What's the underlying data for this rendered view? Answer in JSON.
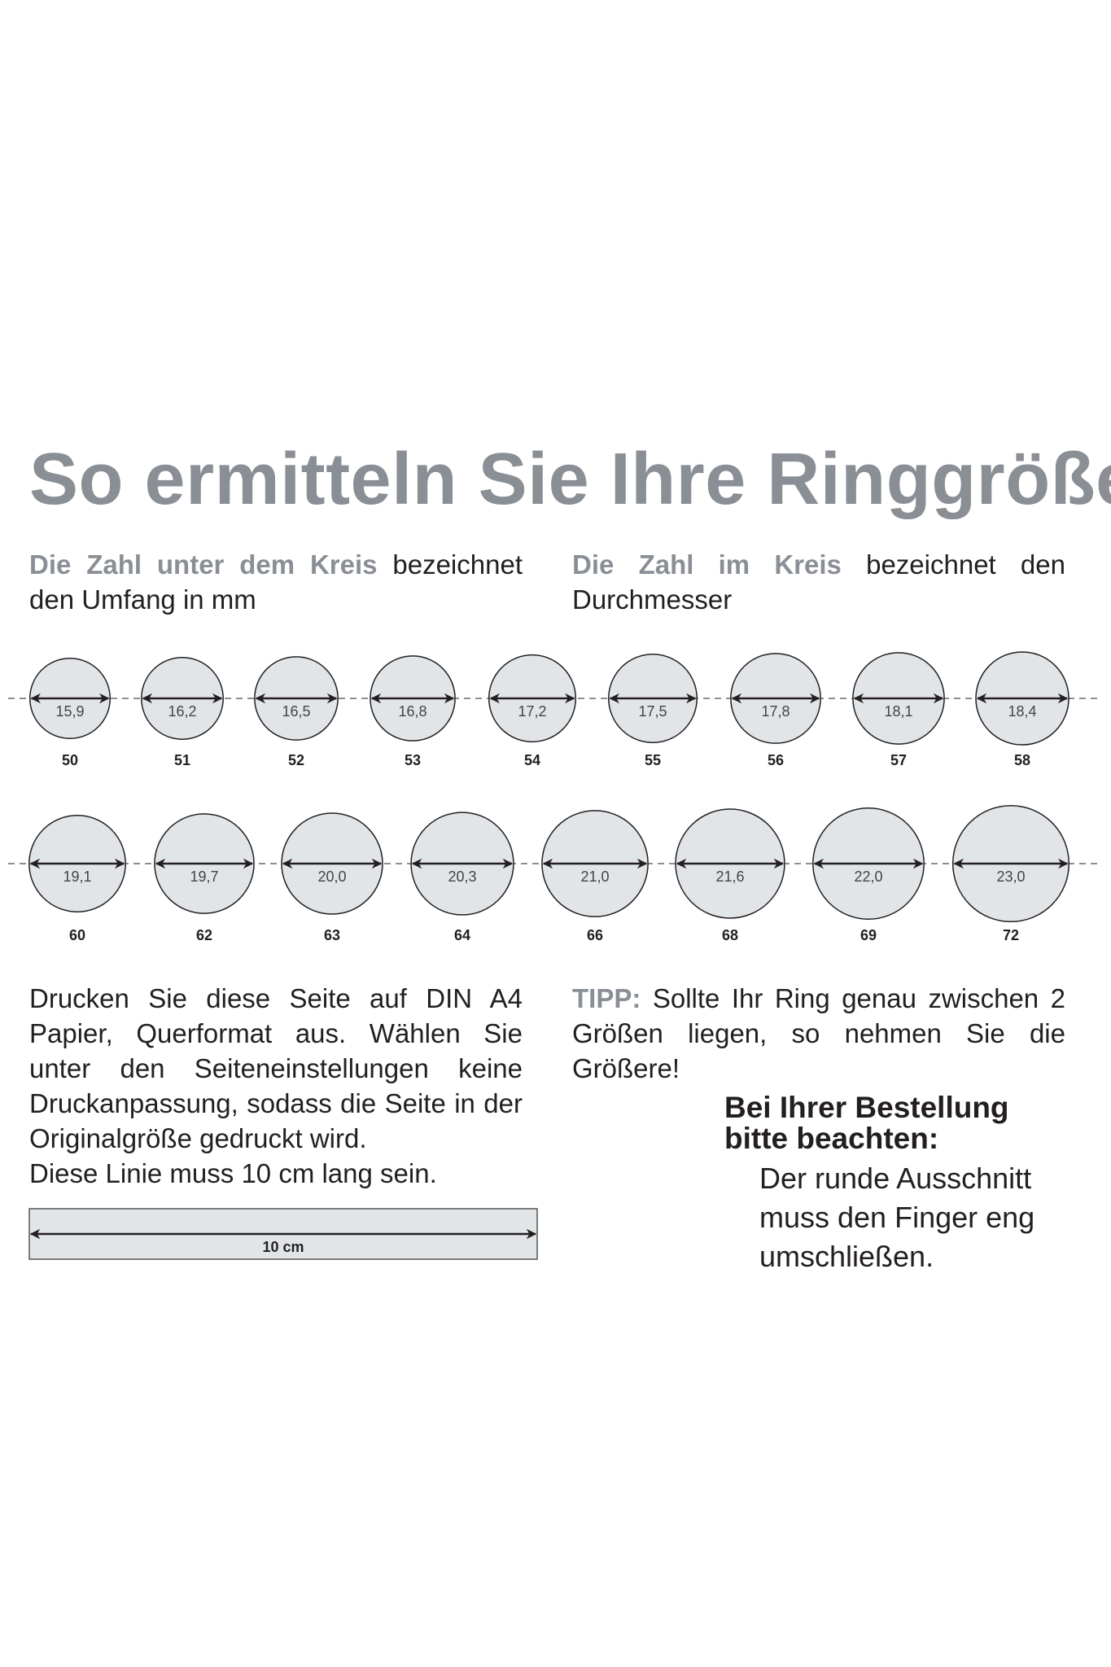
{
  "title": "So ermitteln Sie Ihre Ringgröße",
  "intro_left": {
    "highlight": "Die Zahl unter dem Kreis",
    "text": " bezeichnet den Umfang in mm"
  },
  "intro_right": {
    "highlight": "Die Zahl im Kreis",
    "text": " bezeichnet den Durchmesser"
  },
  "colors": {
    "accent": "#8a8f96",
    "circle_fill": "#e2e5e8",
    "text": "#231f20"
  },
  "rings_row1": [
    {
      "diameter": "15,9",
      "size": "50"
    },
    {
      "diameter": "16,2",
      "size": "51"
    },
    {
      "diameter": "16,5",
      "size": "52"
    },
    {
      "diameter": "16,8",
      "size": "53"
    },
    {
      "diameter": "17,2",
      "size": "54"
    },
    {
      "diameter": "17,5",
      "size": "55"
    },
    {
      "diameter": "17,8",
      "size": "56"
    },
    {
      "diameter": "18,1",
      "size": "57"
    },
    {
      "diameter": "18,4",
      "size": "58"
    }
  ],
  "rings_row2": [
    {
      "diameter": "19,1",
      "size": "60"
    },
    {
      "diameter": "19,7",
      "size": "62"
    },
    {
      "diameter": "20,0",
      "size": "63"
    },
    {
      "diameter": "20,3",
      "size": "64"
    },
    {
      "diameter": "21,0",
      "size": "66"
    },
    {
      "diameter": "21,6",
      "size": "68"
    },
    {
      "diameter": "22,0",
      "size": "69"
    },
    {
      "diameter": "23,0",
      "size": "72"
    }
  ],
  "print_note": "Drucken Sie diese Seite auf DIN A4 Papier, Querformat aus. Wählen Sie unter den Seiteneinstellungen keine Druckanpassung, sodass die Seite in der Originalgröße gedruckt wird.",
  "line_note": "Diese Linie muss 10 cm lang sein.",
  "ruler_label": "10 cm",
  "tip": {
    "label": "TIPP:",
    "text": " Sollte Ihr Ring genau zwischen 2 Größen liegen, so nehmen Sie die Größere!"
  },
  "order": {
    "heading_line1": "Bei Ihrer Bestellung",
    "heading_line2": "bitte beachten:",
    "line1": "Der runde Ausschnitt",
    "line2": "muss den Finger eng",
    "line3": "umschließen."
  }
}
